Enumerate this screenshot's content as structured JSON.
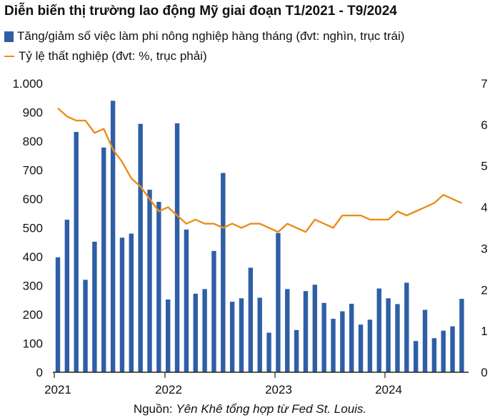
{
  "title": "Diễn biến thị trường lao động Mỹ giai đoạn T1/2021 - T9/2024",
  "colors": {
    "bar": "#2e5fa6",
    "line": "#ec8c1a",
    "axis": "#222222"
  },
  "source": {
    "prefix": "Nguồn: ",
    "text": "Yên Khê tổng hợp từ Fed St. Louis."
  },
  "chart_data": {
    "type": "bar",
    "title": "Diễn biến thị trường lao động Mỹ giai đoạn T1/2021 - T9/2024",
    "x": [
      "2021-01",
      "2021-02",
      "2021-03",
      "2021-04",
      "2021-05",
      "2021-06",
      "2021-07",
      "2021-08",
      "2021-09",
      "2021-10",
      "2021-11",
      "2021-12",
      "2022-01",
      "2022-02",
      "2022-03",
      "2022-04",
      "2022-05",
      "2022-06",
      "2022-07",
      "2022-08",
      "2022-09",
      "2022-10",
      "2022-11",
      "2022-12",
      "2023-01",
      "2023-02",
      "2023-03",
      "2023-04",
      "2023-05",
      "2023-06",
      "2023-07",
      "2023-08",
      "2023-09",
      "2023-10",
      "2023-11",
      "2023-12",
      "2024-01",
      "2024-02",
      "2024-03",
      "2024-04",
      "2024-05",
      "2024-06",
      "2024-07",
      "2024-08",
      "2024-09"
    ],
    "x_tick_labels": [
      "2021",
      "2022",
      "2023",
      "2024"
    ],
    "y_left": {
      "range": [
        0,
        1000
      ],
      "ticks": [
        0,
        100,
        200,
        300,
        400,
        500,
        600,
        700,
        800,
        900,
        1000
      ],
      "tick_labels": [
        "0",
        "100",
        "200",
        "300",
        "400",
        "500",
        "600",
        "700",
        "800",
        "900",
        "1.000"
      ]
    },
    "y_right": {
      "range": [
        0,
        7
      ],
      "ticks": [
        0,
        1,
        2,
        3,
        4,
        5,
        6,
        7
      ],
      "tick_labels": [
        "0",
        "1",
        "2",
        "3",
        "4",
        "5",
        "6",
        "7"
      ]
    },
    "series": [
      {
        "name": "Tăng/giảm số việc làm phi nông nghiệp hàng tháng (đvt: nghìn, trục trái)",
        "type": "bar",
        "axis": "left",
        "values": [
          398,
          528,
          832,
          320,
          452,
          778,
          940,
          466,
          480,
          860,
          632,
          590,
          252,
          862,
          494,
          272,
          288,
          420,
          690,
          244,
          256,
          362,
          258,
          137,
          482,
          288,
          146,
          281,
          303,
          240,
          185,
          211,
          237,
          165,
          182,
          290,
          256,
          236,
          310,
          108,
          216,
          118,
          144,
          159,
          254
        ]
      },
      {
        "name": "Tỷ lệ thất nghiệp (đvt: %, trục phải)",
        "type": "line",
        "axis": "right",
        "values": [
          6.4,
          6.2,
          6.1,
          6.1,
          5.8,
          5.9,
          5.4,
          5.1,
          4.7,
          4.5,
          4.2,
          3.9,
          4.0,
          3.8,
          3.6,
          3.7,
          3.6,
          3.6,
          3.5,
          3.6,
          3.5,
          3.6,
          3.6,
          3.5,
          3.4,
          3.6,
          3.5,
          3.4,
          3.7,
          3.6,
          3.5,
          3.8,
          3.8,
          3.8,
          3.7,
          3.7,
          3.7,
          3.9,
          3.8,
          3.9,
          4.0,
          4.1,
          4.3,
          4.2,
          4.1
        ]
      }
    ]
  }
}
